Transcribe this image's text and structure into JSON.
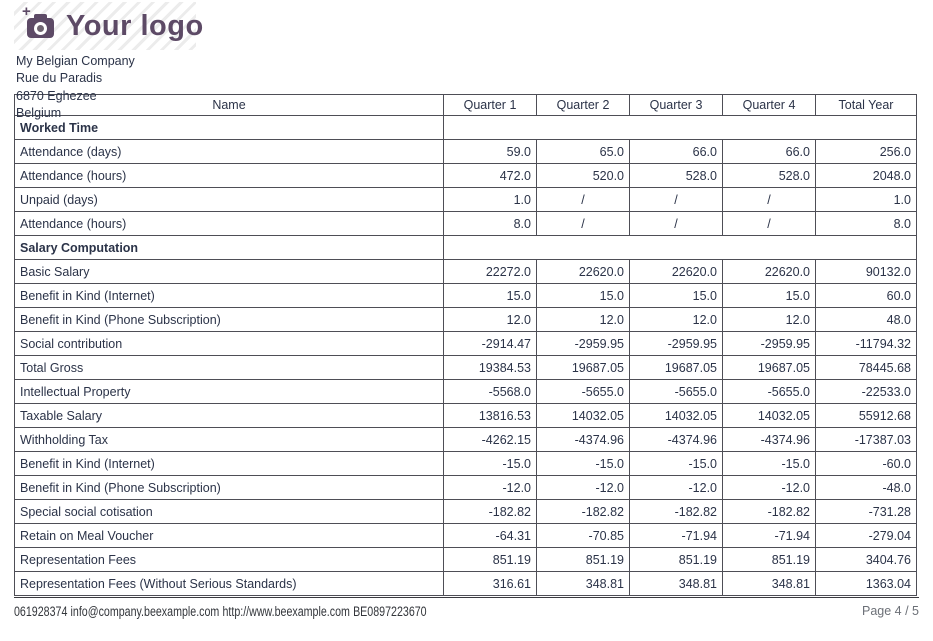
{
  "colors": {
    "brand_purple": "#5d4a66",
    "text": "#2b3348",
    "table_border": "#4e4e56",
    "muted_gray": "#6c7077"
  },
  "logo": {
    "text": "Your logo",
    "icon": "camera-plus-icon"
  },
  "company": {
    "name": "My Belgian Company",
    "street": "Rue du Paradis",
    "city": "6870 Eghezee",
    "country": "Belgium"
  },
  "table": {
    "columns": [
      "Name",
      "Quarter 1",
      "Quarter 2",
      "Quarter 3",
      "Quarter 4",
      "Total Year"
    ],
    "rows": [
      {
        "type": "section",
        "name": "Worked Time"
      },
      {
        "type": "data",
        "name": "Attendance (days)",
        "values": [
          "59.0",
          "65.0",
          "66.0",
          "66.0",
          "256.0"
        ]
      },
      {
        "type": "data",
        "name": "Attendance (hours)",
        "values": [
          "472.0",
          "520.0",
          "528.0",
          "528.0",
          "2048.0"
        ]
      },
      {
        "type": "data",
        "name": "Unpaid (days)",
        "values": [
          "1.0",
          "/",
          "/",
          "/",
          "1.0"
        ]
      },
      {
        "type": "data",
        "name": "Attendance (hours)",
        "values": [
          "8.0",
          "/",
          "/",
          "/",
          "8.0"
        ]
      },
      {
        "type": "section",
        "name": "Salary Computation"
      },
      {
        "type": "data",
        "name": "Basic Salary",
        "values": [
          "22272.0",
          "22620.0",
          "22620.0",
          "22620.0",
          "90132.0"
        ]
      },
      {
        "type": "data",
        "name": "Benefit in Kind (Internet)",
        "values": [
          "15.0",
          "15.0",
          "15.0",
          "15.0",
          "60.0"
        ]
      },
      {
        "type": "data",
        "name": "Benefit in Kind (Phone Subscription)",
        "values": [
          "12.0",
          "12.0",
          "12.0",
          "12.0",
          "48.0"
        ]
      },
      {
        "type": "data",
        "name": "Social contribution",
        "values": [
          "-2914.47",
          "-2959.95",
          "-2959.95",
          "-2959.95",
          "-11794.32"
        ]
      },
      {
        "type": "data",
        "name": "Total Gross",
        "values": [
          "19384.53",
          "19687.05",
          "19687.05",
          "19687.05",
          "78445.68"
        ]
      },
      {
        "type": "data",
        "name": "Intellectual Property",
        "values": [
          "-5568.0",
          "-5655.0",
          "-5655.0",
          "-5655.0",
          "-22533.0"
        ]
      },
      {
        "type": "data",
        "name": "Taxable Salary",
        "values": [
          "13816.53",
          "14032.05",
          "14032.05",
          "14032.05",
          "55912.68"
        ]
      },
      {
        "type": "data",
        "name": "Withholding Tax",
        "values": [
          "-4262.15",
          "-4374.96",
          "-4374.96",
          "-4374.96",
          "-17387.03"
        ]
      },
      {
        "type": "data",
        "name": "Benefit in Kind (Internet)",
        "values": [
          "-15.0",
          "-15.0",
          "-15.0",
          "-15.0",
          "-60.0"
        ]
      },
      {
        "type": "data",
        "name": "Benefit in Kind (Phone Subscription)",
        "values": [
          "-12.0",
          "-12.0",
          "-12.0",
          "-12.0",
          "-48.0"
        ]
      },
      {
        "type": "data",
        "name": "Special social cotisation",
        "values": [
          "-182.82",
          "-182.82",
          "-182.82",
          "-182.82",
          "-731.28"
        ]
      },
      {
        "type": "data",
        "name": "Retain on Meal Voucher",
        "values": [
          "-64.31",
          "-70.85",
          "-71.94",
          "-71.94",
          "-279.04"
        ]
      },
      {
        "type": "data",
        "name": "Representation Fees",
        "values": [
          "851.19",
          "851.19",
          "851.19",
          "851.19",
          "3404.76"
        ]
      },
      {
        "type": "data",
        "name": "Representation Fees (Without Serious Standards)",
        "values": [
          "316.61",
          "348.81",
          "348.81",
          "348.81",
          "1363.04"
        ]
      }
    ]
  },
  "footer": {
    "phone": "061928374",
    "email": "info@company.beexample.com",
    "website": "http://www.beexample.com",
    "vat": "BE0897223670",
    "page": "Page 4 / 5"
  }
}
